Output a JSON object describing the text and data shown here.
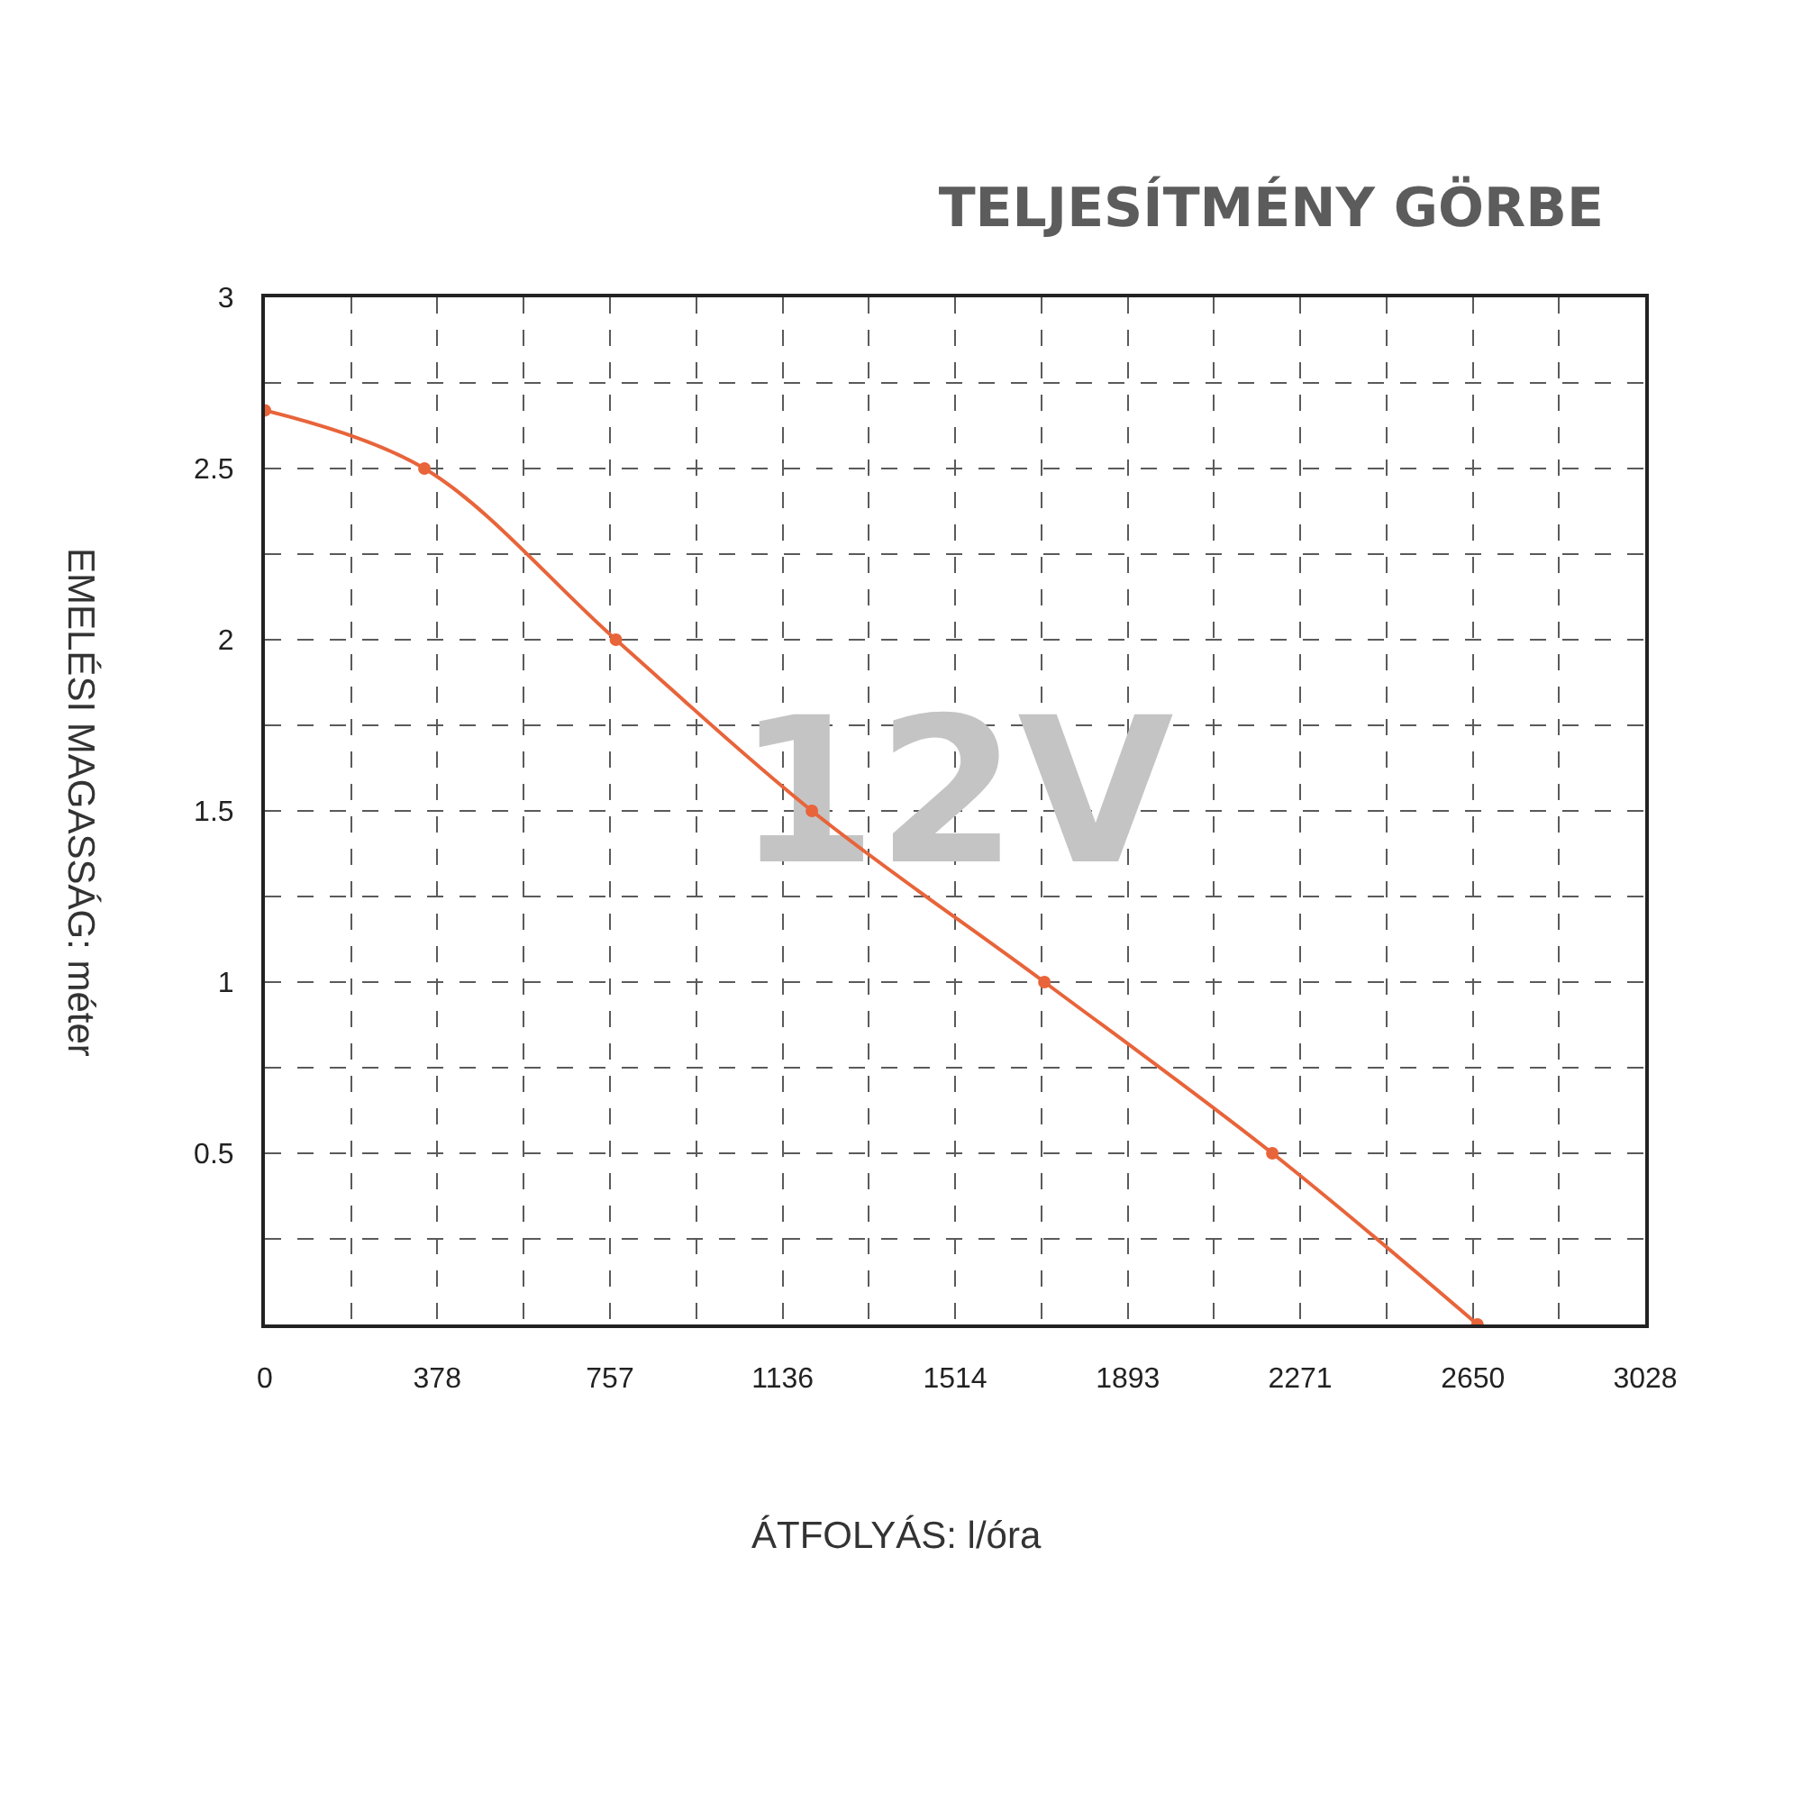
{
  "chart_data": {
    "type": "line",
    "title": "TELJESÍTMÉNY GÖRBE",
    "xlabel": "ÁTFOLYÁS: l/óra",
    "ylabel": "EMELÉSI MAGASSÁG: méter",
    "annotations": [
      "12V"
    ],
    "x": [
      0,
      350,
      770,
      1200,
      1710,
      2210,
      2660
    ],
    "series": [
      {
        "color": "#e8643a",
        "values": [
          2.67,
          2.5,
          2.0,
          1.5,
          1.0,
          0.5,
          0
        ]
      }
    ],
    "xlim": [
      0,
      3028
    ],
    "xticks": [
      0,
      378,
      757,
      1136,
      1514,
      1893,
      2271,
      2650,
      3028
    ],
    "ylim": [
      0,
      3
    ],
    "yticks": [
      0.5,
      1,
      1.5,
      2,
      2.5,
      3
    ],
    "grid": true,
    "marker": "circle",
    "line_style": "solid"
  }
}
